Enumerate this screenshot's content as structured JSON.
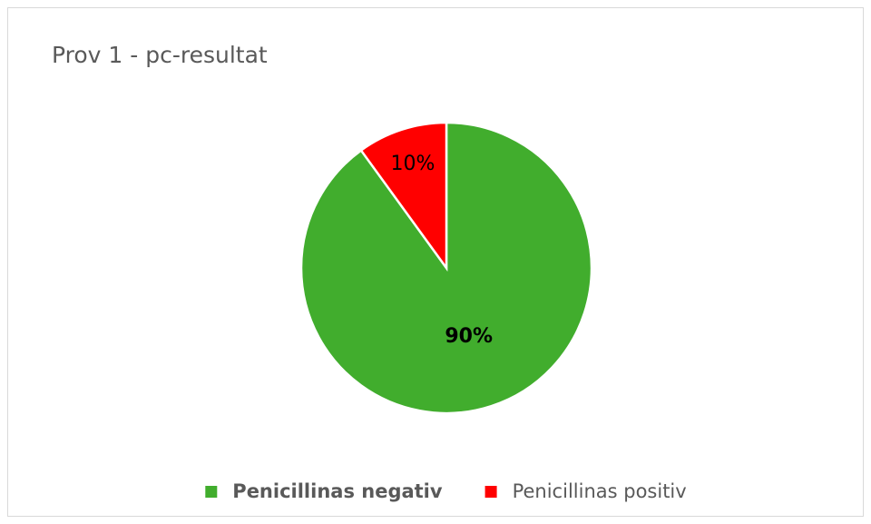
{
  "chart_data": {
    "type": "pie",
    "title": "Prov 1 - pc-resultat",
    "categories": [
      "Penicillinas negativ",
      "Penicillinas positiv"
    ],
    "values": [
      90,
      10
    ],
    "value_labels": [
      "90%",
      "10%"
    ],
    "colors": [
      "#41ad2d",
      "#ff0000"
    ],
    "legend": "bottom"
  }
}
